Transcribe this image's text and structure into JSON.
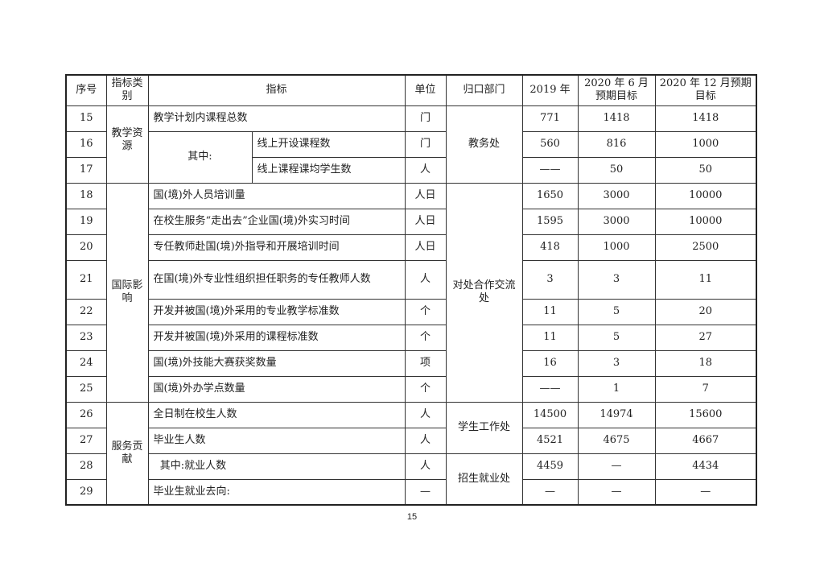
{
  "header": {
    "no": "序号",
    "category": "指标类别",
    "indicator": "指标",
    "unit": "单位",
    "dept": "归口部门",
    "y2019": "2019 年",
    "jun2020": "2020 年 6 月预期目标",
    "dec2020": "2020 年 12 月预期目标"
  },
  "groups": {
    "teaching": "教学资源",
    "intl": "国际影响",
    "service": "服务贡献",
    "among": "其中:"
  },
  "depts": {
    "jwc": "教务处",
    "dwhz": "对处合作交流处",
    "xsgz": "学生工作处",
    "zsjy": "招生就业处"
  },
  "rows": [
    {
      "no": "15",
      "name": "教学计划内课程总数",
      "unit": "门",
      "y2019": "771",
      "jun": "1418",
      "dec": "1418"
    },
    {
      "no": "16",
      "name": "线上开设课程数",
      "unit": "门",
      "y2019": "560",
      "jun": "816",
      "dec": "1000"
    },
    {
      "no": "17",
      "name": "线上课程课均学生数",
      "unit": "人",
      "y2019": "——",
      "jun": "50",
      "dec": "50"
    },
    {
      "no": "18",
      "name": "国(境)外人员培训量",
      "unit": "人日",
      "y2019": "1650",
      "jun": "3000",
      "dec": "10000"
    },
    {
      "no": "19",
      "name": "在校生服务“走出去”企业国(境)外实习时间",
      "unit": "人日",
      "y2019": "1595",
      "jun": "3000",
      "dec": "10000"
    },
    {
      "no": "20",
      "name": "专任教师赴国(境)外指导和开展培训时间",
      "unit": "人日",
      "y2019": "418",
      "jun": "1000",
      "dec": "2500"
    },
    {
      "no": "21",
      "name": "在国(境)外专业性组织担任职务的专任教师人数",
      "unit": "人",
      "y2019": "3",
      "jun": "3",
      "dec": "11"
    },
    {
      "no": "22",
      "name": "开发并被国(境)外采用的专业教学标准数",
      "unit": "个",
      "y2019": "11",
      "jun": "5",
      "dec": "20"
    },
    {
      "no": "23",
      "name": "开发并被国(境)外采用的课程标准数",
      "unit": "个",
      "y2019": "11",
      "jun": "5",
      "dec": "27"
    },
    {
      "no": "24",
      "name": "国(境)外技能大赛获奖数量",
      "unit": "项",
      "y2019": "16",
      "jun": "3",
      "dec": "18"
    },
    {
      "no": "25",
      "name": "国(境)外办学点数量",
      "unit": "个",
      "y2019": "——",
      "jun": "1",
      "dec": "7"
    },
    {
      "no": "26",
      "name": "全日制在校生人数",
      "unit": "人",
      "y2019": "14500",
      "jun": "14974",
      "dec": "15600"
    },
    {
      "no": "27",
      "name": "毕业生人数",
      "unit": "人",
      "y2019": "4521",
      "jun": "4675",
      "dec": "4667"
    },
    {
      "no": "28",
      "name": "  其中:就业人数",
      "unit": "人",
      "y2019": "4459",
      "jun": "—",
      "dec": "4434"
    },
    {
      "no": "29",
      "name": "毕业生就业去向:",
      "unit": "—",
      "y2019": "—",
      "jun": "—",
      "dec": "—"
    }
  ],
  "page_number": "15"
}
